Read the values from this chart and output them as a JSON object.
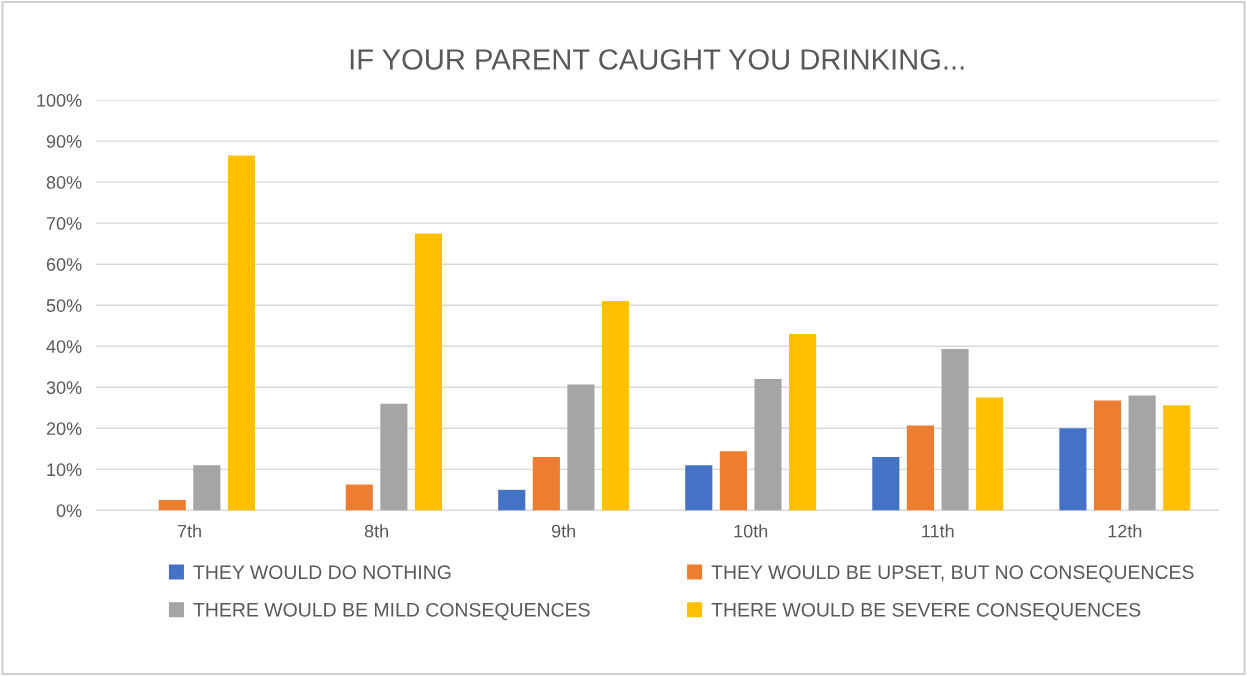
{
  "chart_data": {
    "type": "bar",
    "title": "IF YOUR PARENT CAUGHT YOU DRINKING...",
    "categories": [
      "7th",
      "8th",
      "9th",
      "10th",
      "11th",
      "12th"
    ],
    "series": [
      {
        "name": "THEY WOULD DO NOTHING",
        "color": "#4472c4",
        "values": [
          0,
          0,
          5,
          11,
          13,
          20
        ]
      },
      {
        "name": "THEY WOULD BE UPSET, BUT NO CONSEQUENCES",
        "color": "#ed7d31",
        "values": [
          2.5,
          6.3,
          13,
          14.4,
          20.7,
          26.8
        ]
      },
      {
        "name": "THERE WOULD BE MILD CONSEQUENCES",
        "color": "#a5a5a5",
        "values": [
          11,
          26,
          30.7,
          32,
          39.3,
          28
        ]
      },
      {
        "name": "THERE WOULD BE SEVERE CONSEQUENCES",
        "color": "#ffc000",
        "values": [
          86.5,
          67.5,
          51,
          43,
          27.5,
          25.6
        ]
      }
    ],
    "ylim": [
      0,
      100
    ],
    "yticks": [
      {
        "value": 0,
        "label": "0%"
      },
      {
        "value": 10,
        "label": "10%"
      },
      {
        "value": 20,
        "label": "20%"
      },
      {
        "value": 30,
        "label": "30%"
      },
      {
        "value": 40,
        "label": "40%"
      },
      {
        "value": 50,
        "label": "50%"
      },
      {
        "value": 60,
        "label": "60%"
      },
      {
        "value": 70,
        "label": "70%"
      },
      {
        "value": 80,
        "label": "80%"
      },
      {
        "value": 90,
        "label": "90%"
      },
      {
        "value": 100,
        "label": "100%"
      }
    ],
    "grid": "y",
    "legend": "bottom"
  }
}
